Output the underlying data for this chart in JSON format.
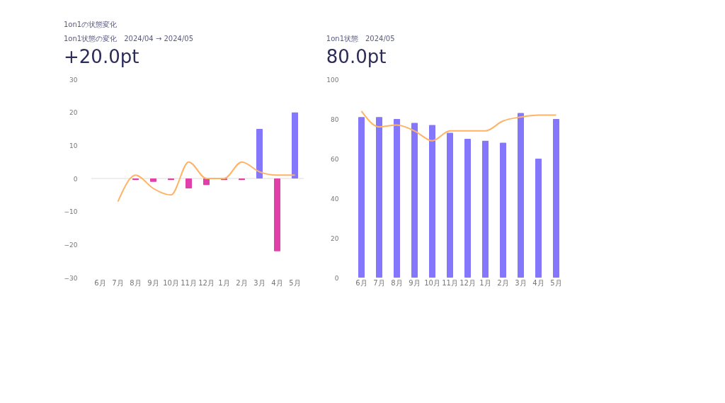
{
  "chart_data": [
    {
      "type": "bar",
      "title": "1on1状態の変化　2024/04 → 2024/05",
      "subtitle": "+20.0pt",
      "annotations": [
        "1on1の状態変化"
      ],
      "categories": [
        "6月",
        "7月",
        "8月",
        "9月",
        "10月",
        "11月",
        "12月",
        "1月",
        "2月",
        "3月",
        "4月",
        "5月"
      ],
      "ylim": [
        -30,
        30
      ],
      "yticks": [
        -30,
        -20,
        -10,
        0,
        10,
        20,
        30
      ],
      "ref_lines": [
        {
          "axis": "y",
          "value": 0,
          "color": "#eeeeee"
        }
      ],
      "series": [
        {
          "colors": [
            null,
            null,
            "#e040a8",
            "#e040a8",
            "#e040a8",
            "#e040a8",
            "#e040a8",
            "#e040a8",
            "#e040a8",
            "#8577fb",
            "#e040a8",
            "#8577fb"
          ],
          "values": [
            null,
            null,
            -0.5,
            -1,
            -0.5,
            -3,
            -2,
            -0.5,
            -0.5,
            15,
            -22,
            20
          ]
        },
        {
          "type": "line",
          "color": "#ffb366",
          "values": [
            null,
            -7,
            1,
            -3,
            -5,
            5,
            0,
            0,
            5,
            2,
            1,
            1
          ]
        }
      ]
    },
    {
      "type": "bar",
      "title": "1on1状態　2024/05",
      "subtitle": "80.0pt",
      "categories": [
        "6月",
        "7月",
        "8月",
        "9月",
        "10月",
        "11月",
        "12月",
        "1月",
        "2月",
        "3月",
        "4月",
        "5月"
      ],
      "ylim": [
        0,
        100
      ],
      "yticks": [
        0,
        20,
        40,
        60,
        80,
        100
      ],
      "series": [
        {
          "color": "#8577fb",
          "values": [
            81,
            81,
            80,
            78,
            77,
            73,
            70,
            69,
            68,
            83,
            60,
            80
          ]
        },
        {
          "type": "line",
          "color": "#ffb366",
          "values": [
            84,
            76,
            77,
            74,
            69,
            74,
            74,
            74,
            79,
            81,
            82,
            82
          ]
        }
      ]
    }
  ]
}
